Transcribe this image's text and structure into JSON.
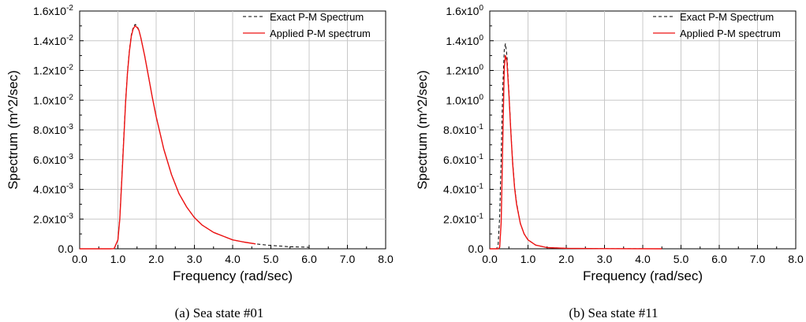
{
  "chart_data": [
    {
      "type": "line",
      "caption": "(a)  Sea  state  #01",
      "xlabel": "Frequency (rad/sec)",
      "ylabel": "Spectrum (m^2/sec)",
      "xlim": [
        0,
        8
      ],
      "ylim": [
        0,
        0.016
      ],
      "grid": true,
      "legend_position": "top-right",
      "x_ticks": [
        "0.0",
        "1.0",
        "2.0",
        "3.0",
        "4.0",
        "5.0",
        "6.0",
        "7.0",
        "8.0"
      ],
      "y_ticks": [
        {
          "mant": "0.0",
          "exp": ""
        },
        {
          "mant": "2.0x10",
          "exp": "-3"
        },
        {
          "mant": "4.0x10",
          "exp": "-3"
        },
        {
          "mant": "6.0x10",
          "exp": "-3"
        },
        {
          "mant": "8.0x10",
          "exp": "-3"
        },
        {
          "mant": "1.0x10",
          "exp": "-2"
        },
        {
          "mant": "1.2x10",
          "exp": "-2"
        },
        {
          "mant": "1.4x10",
          "exp": "-2"
        },
        {
          "mant": "1.6x10",
          "exp": "-2"
        }
      ],
      "series": [
        {
          "name": "Exact P-M Spectrum",
          "color": "#000000",
          "dash": "4,3",
          "x": [
            0,
            0.8,
            0.9,
            1.0,
            1.05,
            1.1,
            1.15,
            1.2,
            1.25,
            1.3,
            1.35,
            1.4,
            1.45,
            1.5,
            1.55,
            1.6,
            1.7,
            1.8,
            1.9,
            2.0,
            2.2,
            2.4,
            2.6,
            2.8,
            3.0,
            3.2,
            3.5,
            3.8,
            4.0,
            4.3,
            4.6,
            5.0,
            5.5,
            6.0
          ],
          "y": [
            0,
            0,
            1e-05,
            0.0006,
            0.0021,
            0.0046,
            0.0074,
            0.0099,
            0.0119,
            0.0134,
            0.0144,
            0.0149,
            0.0151,
            0.015,
            0.0147,
            0.0142,
            0.013,
            0.0116,
            0.0102,
            0.0089,
            0.0067,
            0.005,
            0.0037,
            0.0028,
            0.0021,
            0.0016,
            0.0011,
            0.0008,
            0.0006,
            0.00045,
            0.00033,
            0.00022,
            0.00014,
            0.0001
          ]
        },
        {
          "name": "Applied P-M spectrum",
          "color": "#ee1111",
          "dash": "",
          "x": [
            0,
            0.8,
            0.9,
            1.0,
            1.05,
            1.1,
            1.15,
            1.2,
            1.25,
            1.3,
            1.35,
            1.4,
            1.45,
            1.5,
            1.55,
            1.6,
            1.7,
            1.8,
            1.9,
            2.0,
            2.2,
            2.4,
            2.6,
            2.8,
            3.0,
            3.2,
            3.5,
            3.8,
            4.0,
            4.3,
            4.6
          ],
          "y": [
            0,
            0,
            1e-05,
            0.0006,
            0.002,
            0.0045,
            0.0072,
            0.0098,
            0.0118,
            0.0133,
            0.0143,
            0.0148,
            0.015,
            0.0149,
            0.0147,
            0.0142,
            0.013,
            0.0116,
            0.0102,
            0.0089,
            0.0067,
            0.005,
            0.0037,
            0.0028,
            0.0021,
            0.0016,
            0.0011,
            0.0008,
            0.0006,
            0.00045,
            0.00033
          ]
        }
      ]
    },
    {
      "type": "line",
      "caption": "(b)  Sea  state  #11",
      "xlabel": "Frequency (rad/sec)",
      "ylabel": "Spectrum (m^2/sec)",
      "xlim": [
        0,
        8
      ],
      "ylim": [
        0,
        1.6
      ],
      "grid": true,
      "legend_position": "top-right",
      "x_ticks": [
        "0.0",
        "1.0",
        "2.0",
        "3.0",
        "4.0",
        "5.0",
        "6.0",
        "7.0",
        "8.0"
      ],
      "y_ticks": [
        {
          "mant": "0.0",
          "exp": ""
        },
        {
          "mant": "2.0x10",
          "exp": "-1"
        },
        {
          "mant": "4.0x10",
          "exp": "-1"
        },
        {
          "mant": "6.0x10",
          "exp": "-1"
        },
        {
          "mant": "8.0x10",
          "exp": "-1"
        },
        {
          "mant": "1.0x10",
          "exp": "0"
        },
        {
          "mant": "1.2x10",
          "exp": "0"
        },
        {
          "mant": "1.4x10",
          "exp": "0"
        },
        {
          "mant": "1.6x10",
          "exp": "0"
        }
      ],
      "series": [
        {
          "name": "Exact P-M Spectrum",
          "color": "#000000",
          "dash": "4,3",
          "x": [
            0,
            0.18,
            0.22,
            0.26,
            0.3,
            0.34,
            0.38,
            0.41,
            0.45,
            0.5,
            0.55,
            0.6,
            0.65,
            0.7,
            0.8,
            0.9,
            1.0,
            1.2,
            1.5,
            2.0,
            3.0,
            4.5
          ],
          "y": [
            0,
            0,
            0.03,
            0.22,
            0.62,
            1.08,
            1.34,
            1.38,
            1.3,
            1.06,
            0.8,
            0.58,
            0.42,
            0.31,
            0.17,
            0.1,
            0.06,
            0.025,
            0.008,
            0.003,
            0.001,
            0
          ]
        },
        {
          "name": "Applied P-M spectrum",
          "color": "#ee1111",
          "dash": "",
          "x": [
            0,
            0.18,
            0.22,
            0.26,
            0.3,
            0.34,
            0.38,
            0.41,
            0.45,
            0.5,
            0.55,
            0.6,
            0.65,
            0.7,
            0.8,
            0.9,
            1.0,
            1.2,
            1.5,
            2.0,
            3.0,
            4.5
          ],
          "y": [
            0,
            0,
            0.0,
            0.01,
            0.18,
            0.72,
            1.22,
            1.3,
            1.26,
            1.04,
            0.79,
            0.57,
            0.41,
            0.3,
            0.17,
            0.1,
            0.06,
            0.025,
            0.008,
            0.003,
            0.001,
            0
          ]
        }
      ]
    }
  ]
}
